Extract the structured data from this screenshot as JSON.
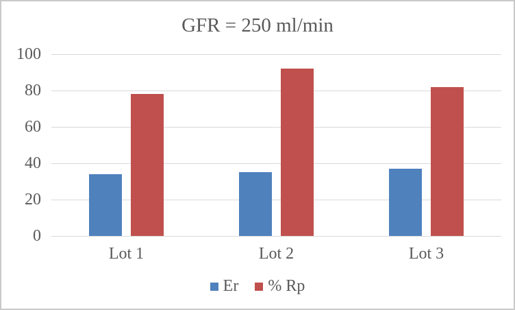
{
  "chart_data": {
    "type": "bar",
    "title": "GFR = 250 ml/min",
    "categories": [
      "Lot 1",
      "Lot 2",
      "Lot 3"
    ],
    "series": [
      {
        "name": "Er",
        "color": "#4F81BD",
        "values": [
          34,
          35,
          37
        ]
      },
      {
        "name": "% Rp",
        "color": "#C0504D",
        "values": [
          78,
          92,
          82
        ]
      }
    ],
    "xlabel": "",
    "ylabel": "",
    "ylim": [
      0,
      100
    ],
    "yticks": [
      0,
      20,
      40,
      60,
      80,
      100
    ],
    "grid": true,
    "legend_position": "bottom"
  },
  "colors": {
    "text": "#595959",
    "gridline": "#D9D9D9",
    "frame_border": "#C9C9C9",
    "background": "#FFFFFF"
  }
}
